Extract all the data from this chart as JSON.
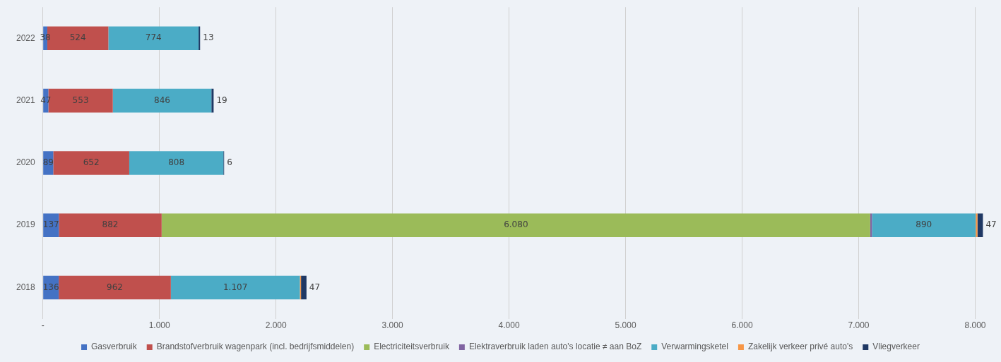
{
  "chart_data": {
    "type": "bar",
    "orientation": "horizontal",
    "stacked": true,
    "categories": [
      "2022",
      "2021",
      "2020",
      "2019",
      "2018"
    ],
    "series": [
      {
        "name": "Gasverbruik",
        "color": "#4472c4",
        "values": [
          38,
          47,
          89,
          137,
          136
        ],
        "value_labels": [
          "38",
          "47",
          "89",
          "137",
          "136"
        ]
      },
      {
        "name": "Brandstofverbruik wagenpark (incl. bedrijfsmiddelen)",
        "color": "#c0504d",
        "values": [
          524,
          553,
          652,
          882,
          962
        ],
        "value_labels": [
          "524",
          "553",
          "652",
          "882",
          "962"
        ]
      },
      {
        "name": "Electriciteitsverbruik",
        "color": "#9bbb59",
        "values": [
          null,
          null,
          null,
          6080,
          null
        ],
        "value_labels": [
          null,
          null,
          null,
          "6.080",
          null
        ]
      },
      {
        "name": "Elektraverbruik laden auto's locatie ≠ aan BoZ",
        "color": "#8064a2",
        "values": [
          null,
          null,
          null,
          15,
          null
        ],
        "value_labels": [
          null,
          null,
          null,
          null,
          null
        ]
      },
      {
        "name": "Verwarmingsketel",
        "color": "#4bacc6",
        "values": [
          774,
          846,
          808,
          890,
          1107
        ],
        "value_labels": [
          "774",
          "846",
          "808",
          "890",
          "1.107"
        ]
      },
      {
        "name": "Zakelijk verkeer privé auto's",
        "color": "#f79646",
        "values": [
          null,
          null,
          null,
          15,
          10
        ],
        "value_labels": [
          null,
          null,
          null,
          null,
          null
        ]
      },
      {
        "name": "Vliegverkeer",
        "color": "#1f3864",
        "values": [
          13,
          19,
          6,
          47,
          47
        ],
        "value_labels": [
          "13",
          "19",
          "6",
          "47",
          "47"
        ]
      }
    ],
    "xlim": [
      0,
      8100
    ],
    "xticks": [
      {
        "value": 0,
        "label": "-"
      },
      {
        "value": 1000,
        "label": "1.000"
      },
      {
        "value": 2000,
        "label": "2.000"
      },
      {
        "value": 3000,
        "label": "3.000"
      },
      {
        "value": 4000,
        "label": "4.000"
      },
      {
        "value": 5000,
        "label": "5.000"
      },
      {
        "value": 6000,
        "label": "6.000"
      },
      {
        "value": 7000,
        "label": "7.000"
      },
      {
        "value": 8000,
        "label": "8.000"
      }
    ],
    "grid": "x",
    "legend": "bottom"
  }
}
